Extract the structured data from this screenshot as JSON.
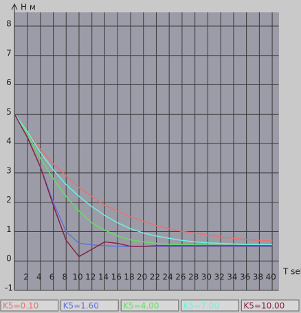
{
  "chart_data": {
    "type": "line",
    "x_label": "T sek",
    "y_label": "H м",
    "x": [
      0,
      2,
      4,
      6,
      8,
      10,
      12,
      14,
      16,
      18,
      20,
      22,
      24,
      26,
      28,
      30,
      32,
      34,
      36,
      38,
      40
    ],
    "series": [
      {
        "name": "K5=0.10",
        "color": "#e87070",
        "values": [
          5,
          4.4,
          3.8,
          3.3,
          2.9,
          2.5,
          2.2,
          1.9,
          1.7,
          1.5,
          1.35,
          1.2,
          1.1,
          1.0,
          0.95,
          0.88,
          0.82,
          0.77,
          0.73,
          0.7,
          0.68
        ]
      },
      {
        "name": "K5=1.60",
        "color": "#6070e0",
        "values": [
          5,
          4.2,
          3.2,
          2.0,
          1.0,
          0.6,
          0.55,
          0.52,
          0.5,
          0.5,
          0.5,
          0.5,
          0.5,
          0.5,
          0.5,
          0.5,
          0.5,
          0.5,
          0.5,
          0.5,
          0.5
        ]
      },
      {
        "name": "K5=4.00",
        "color": "#60e060",
        "values": [
          5,
          4.3,
          3.5,
          2.8,
          2.2,
          1.7,
          1.3,
          1.05,
          0.85,
          0.72,
          0.65,
          0.6,
          0.57,
          0.55,
          0.55,
          0.54,
          0.54,
          0.53,
          0.53,
          0.53,
          0.53
        ]
      },
      {
        "name": "K5=7.00",
        "color": "#70f0e0",
        "values": [
          5,
          4.4,
          3.7,
          3.1,
          2.6,
          2.2,
          1.85,
          1.55,
          1.3,
          1.1,
          0.95,
          0.85,
          0.77,
          0.7,
          0.65,
          0.62,
          0.6,
          0.58,
          0.57,
          0.56,
          0.55
        ]
      },
      {
        "name": "K5=10.00",
        "color": "#8a2040",
        "values": [
          5,
          4.2,
          3.2,
          1.9,
          0.7,
          0.15,
          0.4,
          0.65,
          0.6,
          0.5,
          0.5,
          0.52,
          0.52,
          0.52,
          0.52,
          0.52,
          0.52,
          0.52,
          0.52,
          0.52,
          0.52
        ]
      }
    ],
    "xlim": [
      0,
      41
    ],
    "ylim": [
      -1,
      8
    ],
    "xticks": [
      2,
      4,
      6,
      8,
      10,
      12,
      14,
      16,
      18,
      20,
      22,
      24,
      26,
      28,
      30,
      32,
      34,
      36,
      38,
      40
    ],
    "yticks": [
      -1,
      0,
      1,
      2,
      3,
      4,
      5,
      6,
      7,
      8
    ],
    "grid": true
  }
}
